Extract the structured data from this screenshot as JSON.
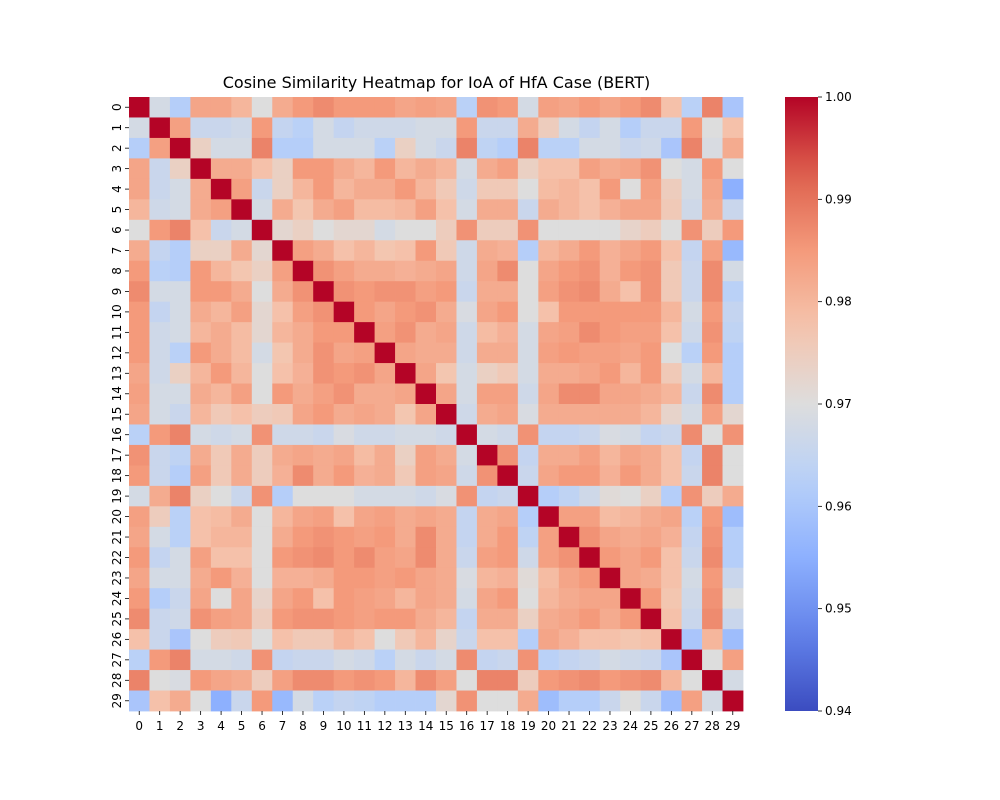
{
  "chart_data": {
    "type": "heatmap",
    "title": "Cosine Similarity Heatmap for IoA of HfA Case (BERT)",
    "xlabel": "",
    "ylabel": "",
    "x_categories": [
      "0",
      "1",
      "2",
      "3",
      "4",
      "5",
      "6",
      "7",
      "8",
      "9",
      "10",
      "11",
      "12",
      "13",
      "14",
      "15",
      "16",
      "17",
      "18",
      "19",
      "20",
      "21",
      "22",
      "23",
      "24",
      "25",
      "26",
      "27",
      "28",
      "29"
    ],
    "y_categories": [
      "0",
      "1",
      "2",
      "3",
      "4",
      "5",
      "6",
      "7",
      "8",
      "9",
      "10",
      "11",
      "12",
      "13",
      "14",
      "15",
      "16",
      "17",
      "18",
      "19",
      "20",
      "21",
      "22",
      "23",
      "24",
      "25",
      "26",
      "27",
      "28",
      "29"
    ],
    "colormap": "coolwarm",
    "vmin": 0.94,
    "vmax": 1.0,
    "colorbar_ticks": [
      "0.94",
      "0.95",
      "0.96",
      "0.97",
      "0.98",
      "0.99",
      "1.00"
    ],
    "matrix": [
      [
        1.0,
        0.968,
        0.962,
        0.983,
        0.983,
        0.98,
        0.97,
        0.982,
        0.985,
        0.987,
        0.985,
        0.985,
        0.985,
        0.983,
        0.984,
        0.983,
        0.963,
        0.986,
        0.985,
        0.968,
        0.984,
        0.983,
        0.985,
        0.983,
        0.985,
        0.987,
        0.978,
        0.963,
        0.988,
        0.96
      ],
      [
        0.968,
        1.0,
        0.984,
        0.966,
        0.966,
        0.967,
        0.985,
        0.965,
        0.963,
        0.968,
        0.965,
        0.967,
        0.967,
        0.967,
        0.968,
        0.968,
        0.985,
        0.966,
        0.966,
        0.982,
        0.975,
        0.968,
        0.965,
        0.968,
        0.962,
        0.966,
        0.966,
        0.985,
        0.97,
        0.978
      ],
      [
        0.962,
        0.984,
        1.0,
        0.974,
        0.968,
        0.968,
        0.988,
        0.962,
        0.962,
        0.968,
        0.968,
        0.968,
        0.963,
        0.974,
        0.968,
        0.966,
        0.988,
        0.964,
        0.962,
        0.988,
        0.963,
        0.963,
        0.968,
        0.968,
        0.966,
        0.967,
        0.96,
        0.988,
        0.969,
        0.982
      ],
      [
        0.983,
        0.966,
        0.974,
        1.0,
        0.982,
        0.982,
        0.978,
        0.974,
        0.985,
        0.985,
        0.982,
        0.98,
        0.985,
        0.98,
        0.982,
        0.98,
        0.968,
        0.982,
        0.984,
        0.974,
        0.978,
        0.978,
        0.984,
        0.982,
        0.983,
        0.986,
        0.97,
        0.968,
        0.985,
        0.97
      ],
      [
        0.983,
        0.966,
        0.968,
        0.982,
        1.0,
        0.984,
        0.966,
        0.974,
        0.98,
        0.985,
        0.98,
        0.982,
        0.982,
        0.985,
        0.98,
        0.976,
        0.967,
        0.976,
        0.976,
        0.97,
        0.979,
        0.98,
        0.978,
        0.985,
        0.97,
        0.984,
        0.975,
        0.968,
        0.983,
        0.955
      ],
      [
        0.98,
        0.967,
        0.968,
        0.982,
        0.984,
        1.0,
        0.968,
        0.982,
        0.977,
        0.982,
        0.984,
        0.979,
        0.979,
        0.98,
        0.984,
        0.978,
        0.968,
        0.982,
        0.982,
        0.966,
        0.982,
        0.98,
        0.978,
        0.981,
        0.983,
        0.983,
        0.976,
        0.967,
        0.982,
        0.966
      ],
      [
        0.97,
        0.985,
        0.988,
        0.978,
        0.966,
        0.968,
        1.0,
        0.972,
        0.974,
        0.97,
        0.972,
        0.972,
        0.968,
        0.97,
        0.97,
        0.975,
        0.986,
        0.975,
        0.975,
        0.986,
        0.97,
        0.97,
        0.97,
        0.97,
        0.973,
        0.975,
        0.97,
        0.986,
        0.975,
        0.985
      ],
      [
        0.982,
        0.965,
        0.962,
        0.974,
        0.974,
        0.982,
        0.972,
        1.0,
        0.984,
        0.982,
        0.978,
        0.98,
        0.977,
        0.978,
        0.985,
        0.976,
        0.967,
        0.982,
        0.981,
        0.962,
        0.98,
        0.982,
        0.985,
        0.981,
        0.983,
        0.985,
        0.978,
        0.965,
        0.984,
        0.957
      ],
      [
        0.985,
        0.963,
        0.962,
        0.985,
        0.98,
        0.977,
        0.974,
        0.984,
        1.0,
        0.986,
        0.984,
        0.982,
        0.982,
        0.981,
        0.982,
        0.983,
        0.967,
        0.983,
        0.987,
        0.97,
        0.983,
        0.985,
        0.986,
        0.981,
        0.985,
        0.986,
        0.976,
        0.966,
        0.987,
        0.968
      ],
      [
        0.987,
        0.968,
        0.968,
        0.985,
        0.985,
        0.982,
        0.97,
        0.982,
        0.986,
        1.0,
        0.986,
        0.985,
        0.986,
        0.986,
        0.984,
        0.985,
        0.966,
        0.982,
        0.982,
        0.97,
        0.984,
        0.986,
        0.987,
        0.982,
        0.978,
        0.986,
        0.976,
        0.966,
        0.987,
        0.963
      ],
      [
        0.985,
        0.965,
        0.968,
        0.982,
        0.98,
        0.984,
        0.972,
        0.978,
        0.984,
        0.986,
        1.0,
        0.985,
        0.983,
        0.985,
        0.986,
        0.982,
        0.969,
        0.983,
        0.985,
        0.97,
        0.978,
        0.985,
        0.985,
        0.985,
        0.985,
        0.985,
        0.98,
        0.968,
        0.985,
        0.965
      ],
      [
        0.985,
        0.967,
        0.968,
        0.98,
        0.982,
        0.979,
        0.972,
        0.98,
        0.982,
        0.985,
        0.985,
        1.0,
        0.984,
        0.986,
        0.982,
        0.983,
        0.967,
        0.979,
        0.981,
        0.968,
        0.983,
        0.984,
        0.987,
        0.985,
        0.984,
        0.984,
        0.978,
        0.967,
        0.986,
        0.964
      ],
      [
        0.985,
        0.967,
        0.963,
        0.985,
        0.982,
        0.979,
        0.968,
        0.977,
        0.982,
        0.986,
        0.983,
        0.984,
        1.0,
        0.983,
        0.982,
        0.982,
        0.967,
        0.982,
        0.982,
        0.968,
        0.984,
        0.985,
        0.984,
        0.984,
        0.983,
        0.985,
        0.97,
        0.963,
        0.985,
        0.962
      ],
      [
        0.983,
        0.967,
        0.974,
        0.98,
        0.985,
        0.98,
        0.97,
        0.978,
        0.981,
        0.986,
        0.985,
        0.986,
        0.983,
        1.0,
        0.983,
        0.977,
        0.968,
        0.974,
        0.976,
        0.968,
        0.982,
        0.982,
        0.983,
        0.985,
        0.98,
        0.985,
        0.976,
        0.968,
        0.98,
        0.962
      ],
      [
        0.984,
        0.968,
        0.968,
        0.982,
        0.98,
        0.984,
        0.97,
        0.985,
        0.982,
        0.984,
        0.986,
        0.982,
        0.982,
        0.983,
        1.0,
        0.983,
        0.968,
        0.984,
        0.984,
        0.967,
        0.983,
        0.987,
        0.987,
        0.983,
        0.983,
        0.982,
        0.98,
        0.966,
        0.987,
        0.962
      ],
      [
        0.983,
        0.968,
        0.966,
        0.98,
        0.976,
        0.978,
        0.975,
        0.976,
        0.983,
        0.985,
        0.982,
        0.983,
        0.982,
        0.977,
        0.983,
        1.0,
        0.967,
        0.982,
        0.983,
        0.969,
        0.982,
        0.982,
        0.982,
        0.982,
        0.982,
        0.98,
        0.973,
        0.968,
        0.984,
        0.972
      ],
      [
        0.963,
        0.985,
        0.988,
        0.968,
        0.967,
        0.968,
        0.986,
        0.967,
        0.967,
        0.966,
        0.969,
        0.967,
        0.967,
        0.968,
        0.968,
        0.967,
        1.0,
        0.968,
        0.967,
        0.986,
        0.965,
        0.965,
        0.966,
        0.969,
        0.968,
        0.965,
        0.966,
        0.987,
        0.97,
        0.986
      ],
      [
        0.986,
        0.966,
        0.964,
        0.982,
        0.976,
        0.982,
        0.975,
        0.982,
        0.983,
        0.982,
        0.983,
        0.979,
        0.982,
        0.974,
        0.984,
        0.982,
        0.968,
        1.0,
        0.986,
        0.965,
        0.982,
        0.982,
        0.984,
        0.98,
        0.983,
        0.982,
        0.978,
        0.965,
        0.988,
        0.97
      ],
      [
        0.985,
        0.966,
        0.962,
        0.984,
        0.976,
        0.982,
        0.975,
        0.981,
        0.987,
        0.982,
        0.985,
        0.981,
        0.982,
        0.976,
        0.984,
        0.983,
        0.967,
        0.986,
        1.0,
        0.966,
        0.983,
        0.985,
        0.985,
        0.981,
        0.985,
        0.982,
        0.978,
        0.966,
        0.988,
        0.97
      ],
      [
        0.968,
        0.982,
        0.988,
        0.974,
        0.97,
        0.966,
        0.986,
        0.962,
        0.97,
        0.97,
        0.97,
        0.968,
        0.968,
        0.968,
        0.967,
        0.969,
        0.986,
        0.965,
        0.966,
        1.0,
        0.962,
        0.964,
        0.967,
        0.971,
        0.97,
        0.974,
        0.962,
        0.986,
        0.975,
        0.982
      ],
      [
        0.984,
        0.975,
        0.963,
        0.978,
        0.979,
        0.982,
        0.97,
        0.98,
        0.983,
        0.984,
        0.978,
        0.983,
        0.984,
        0.982,
        0.983,
        0.982,
        0.965,
        0.982,
        0.983,
        0.962,
        1.0,
        0.984,
        0.984,
        0.979,
        0.98,
        0.982,
        0.983,
        0.963,
        0.985,
        0.958
      ],
      [
        0.983,
        0.968,
        0.963,
        0.978,
        0.98,
        0.98,
        0.97,
        0.982,
        0.985,
        0.986,
        0.985,
        0.984,
        0.985,
        0.982,
        0.987,
        0.982,
        0.965,
        0.982,
        0.985,
        0.964,
        0.984,
        1.0,
        0.986,
        0.983,
        0.982,
        0.983,
        0.981,
        0.965,
        0.986,
        0.962
      ],
      [
        0.985,
        0.965,
        0.968,
        0.984,
        0.978,
        0.978,
        0.97,
        0.985,
        0.986,
        0.987,
        0.985,
        0.987,
        0.984,
        0.983,
        0.987,
        0.982,
        0.966,
        0.984,
        0.985,
        0.967,
        0.984,
        0.986,
        1.0,
        0.985,
        0.983,
        0.985,
        0.978,
        0.966,
        0.987,
        0.962
      ],
      [
        0.983,
        0.968,
        0.968,
        0.982,
        0.985,
        0.981,
        0.97,
        0.981,
        0.981,
        0.982,
        0.985,
        0.985,
        0.984,
        0.985,
        0.983,
        0.982,
        0.969,
        0.98,
        0.981,
        0.971,
        0.979,
        0.983,
        0.985,
        1.0,
        0.983,
        0.982,
        0.978,
        0.968,
        0.985,
        0.966
      ],
      [
        0.985,
        0.962,
        0.966,
        0.983,
        0.97,
        0.983,
        0.973,
        0.983,
        0.985,
        0.978,
        0.985,
        0.984,
        0.983,
        0.98,
        0.983,
        0.982,
        0.968,
        0.983,
        0.985,
        0.97,
        0.98,
        0.982,
        0.983,
        0.983,
        1.0,
        0.985,
        0.977,
        0.967,
        0.986,
        0.97
      ],
      [
        0.987,
        0.966,
        0.967,
        0.986,
        0.984,
        0.983,
        0.975,
        0.985,
        0.986,
        0.986,
        0.985,
        0.984,
        0.985,
        0.985,
        0.982,
        0.98,
        0.965,
        0.982,
        0.982,
        0.974,
        0.982,
        0.983,
        0.985,
        0.982,
        0.985,
        1.0,
        0.978,
        0.966,
        0.987,
        0.966
      ],
      [
        0.978,
        0.966,
        0.96,
        0.97,
        0.975,
        0.976,
        0.97,
        0.978,
        0.976,
        0.976,
        0.98,
        0.978,
        0.97,
        0.976,
        0.98,
        0.973,
        0.966,
        0.978,
        0.978,
        0.962,
        0.983,
        0.981,
        0.978,
        0.978,
        0.977,
        0.978,
        1.0,
        0.96,
        0.98,
        0.958
      ],
      [
        0.963,
        0.985,
        0.988,
        0.968,
        0.968,
        0.967,
        0.986,
        0.965,
        0.966,
        0.966,
        0.968,
        0.967,
        0.963,
        0.968,
        0.966,
        0.968,
        0.987,
        0.965,
        0.966,
        0.986,
        0.963,
        0.965,
        0.966,
        0.968,
        0.967,
        0.966,
        0.96,
        1.0,
        0.97,
        0.984
      ],
      [
        0.988,
        0.97,
        0.969,
        0.985,
        0.983,
        0.982,
        0.975,
        0.984,
        0.987,
        0.987,
        0.985,
        0.986,
        0.985,
        0.98,
        0.987,
        0.984,
        0.97,
        0.988,
        0.988,
        0.975,
        0.985,
        0.986,
        0.987,
        0.985,
        0.986,
        0.987,
        0.98,
        0.97,
        1.0,
        0.968
      ],
      [
        0.96,
        0.978,
        0.982,
        0.97,
        0.955,
        0.966,
        0.985,
        0.957,
        0.968,
        0.963,
        0.965,
        0.964,
        0.962,
        0.962,
        0.962,
        0.972,
        0.986,
        0.97,
        0.97,
        0.982,
        0.958,
        0.962,
        0.962,
        0.966,
        0.97,
        0.966,
        0.958,
        0.984,
        0.968,
        1.0
      ]
    ]
  }
}
